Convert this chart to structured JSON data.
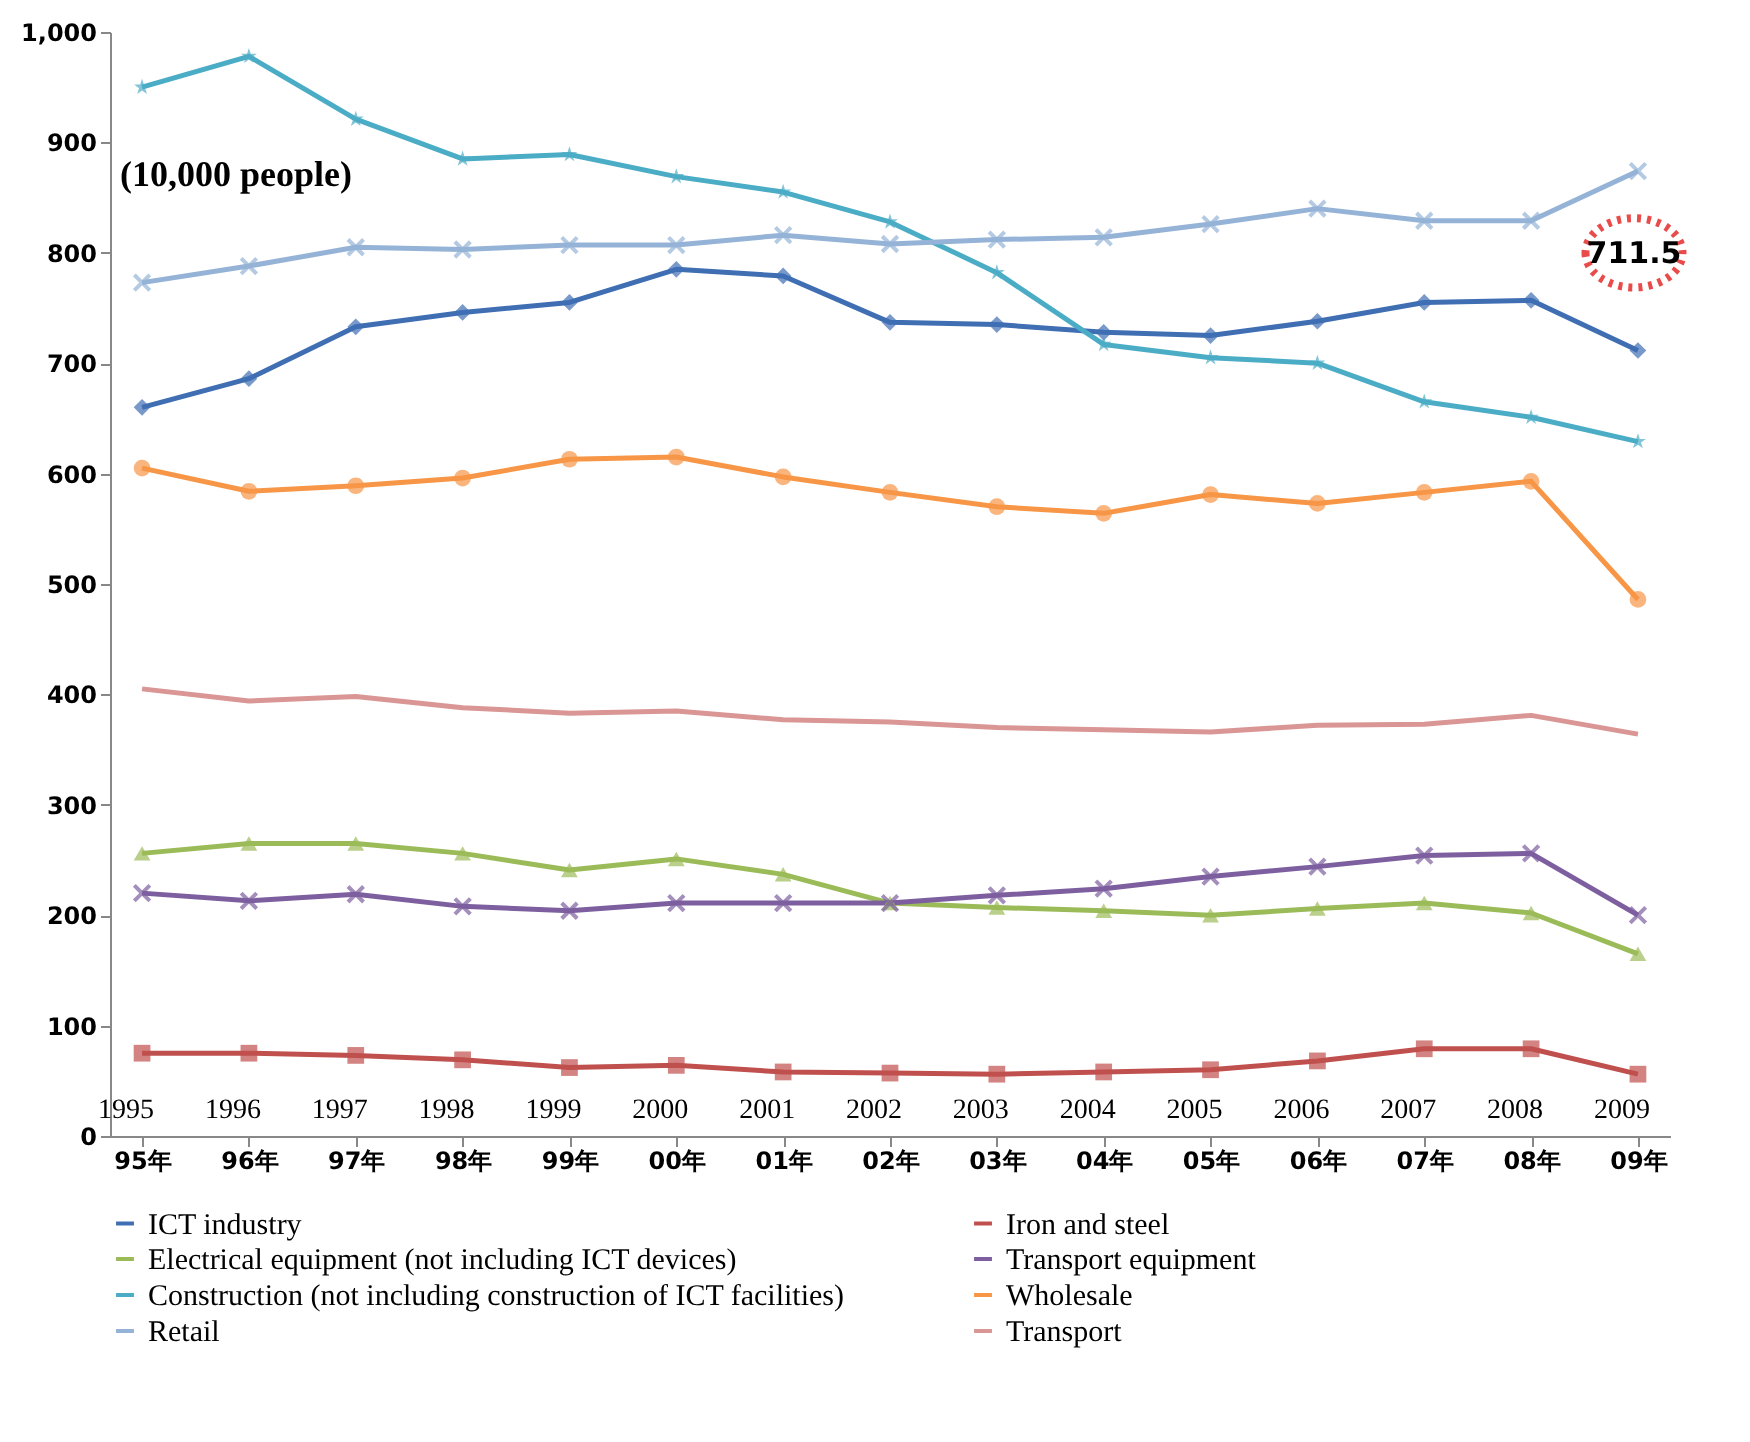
{
  "chart_data": {
    "type": "line",
    "ylabel": "(10,000 people)",
    "categories": [
      "95年",
      "96年",
      "97年",
      "98年",
      "99年",
      "00年",
      "01年",
      "02年",
      "03年",
      "04年",
      "05年",
      "06年",
      "07年",
      "08年",
      "09年"
    ],
    "ylim": [
      0,
      1000
    ],
    "yticks": [
      0,
      100,
      200,
      300,
      400,
      500,
      600,
      700,
      800,
      900,
      {
        "value": 1000,
        "label": "1,000"
      }
    ],
    "grid": false,
    "legend": "bottom",
    "series": [
      {
        "name": "ICT industry",
        "color": "#3f6eb3",
        "marker": "diamond",
        "values": [
          660,
          686,
          733,
          746,
          755,
          785,
          779,
          737,
          735,
          728,
          725,
          738,
          755,
          757,
          711.5
        ]
      },
      {
        "name": "Iron and steel",
        "color": "#c0504d",
        "marker": "square",
        "values": [
          75,
          75,
          73,
          69,
          62,
          64,
          58,
          57,
          56,
          58,
          60,
          68,
          79,
          79,
          56
        ]
      },
      {
        "name": "Electrical equipment (not including ICT devices)",
        "color": "#9bbb59",
        "marker": "triangle",
        "values": [
          256,
          265,
          265,
          256,
          241,
          251,
          237,
          211,
          207,
          204,
          200,
          206,
          211,
          202,
          165
        ]
      },
      {
        "name": "Transport equipment",
        "color": "#7d5fa0",
        "marker": "cross",
        "values": [
          220,
          213,
          219,
          208,
          204,
          211,
          211,
          211,
          218,
          224,
          235,
          244,
          254,
          256,
          200
        ]
      },
      {
        "name": "Construction (not including construction of ICT facilities)",
        "color": "#4bacc6",
        "marker": "star",
        "values": [
          950,
          978,
          921,
          885,
          889,
          869,
          855,
          828,
          782,
          717,
          705,
          700,
          665,
          651,
          629
        ]
      },
      {
        "name": "Wholesale",
        "color": "#f79646",
        "marker": "circle",
        "values": [
          605,
          584,
          589,
          596,
          613,
          615,
          597,
          583,
          570,
          564,
          581,
          573,
          583,
          593,
          486
        ]
      },
      {
        "name": "Retail",
        "color": "#95b3d7",
        "marker": "cross",
        "values": [
          773,
          788,
          805,
          803,
          807,
          807,
          816,
          808,
          812,
          814,
          826,
          840,
          829,
          829,
          874
        ]
      },
      {
        "name": "Transport",
        "color": "#d99694",
        "marker": "none",
        "values": [
          405,
          394,
          398,
          388,
          383,
          385,
          377,
          375,
          370,
          368,
          366,
          372,
          373,
          381,
          364
        ]
      }
    ],
    "annotations": [
      "1995",
      "1996",
      "1997",
      "1998",
      "1999",
      "2000",
      "2001",
      "2002",
      "2003",
      "2004",
      "2005",
      "2006",
      "2007",
      "2008",
      "2009",
      "711.5"
    ]
  }
}
